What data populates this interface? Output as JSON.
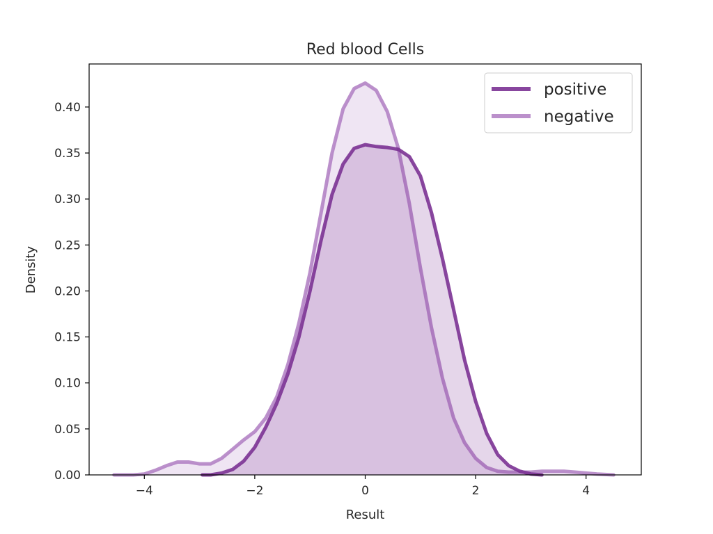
{
  "chart_data": {
    "type": "area",
    "title": "Red blood Cells",
    "xlabel": "Result",
    "ylabel": "Density",
    "xlim": [
      -5,
      5
    ],
    "ylim": [
      0,
      0.4468
    ],
    "xticks": [
      -4,
      -2,
      0,
      2,
      4
    ],
    "xtick_labels": [
      "−4",
      "−2",
      "0",
      "2",
      "4"
    ],
    "yticks": [
      0,
      0.05,
      0.1,
      0.15,
      0.2,
      0.25,
      0.3,
      0.35,
      0.4
    ],
    "ytick_labels": [
      "0.00",
      "0.05",
      "0.10",
      "0.15",
      "0.20",
      "0.25",
      "0.30",
      "0.35",
      "0.40"
    ],
    "legend_position": "top-right",
    "series": [
      {
        "name": "positive",
        "color": "#7b3294",
        "fill_opacity": 0.2,
        "line_opacity": 0.9,
        "points": [
          [
            -2.95,
            0.0
          ],
          [
            -2.8,
            0.0
          ],
          [
            -2.6,
            0.002
          ],
          [
            -2.4,
            0.006
          ],
          [
            -2.2,
            0.015
          ],
          [
            -2.0,
            0.03
          ],
          [
            -1.8,
            0.052
          ],
          [
            -1.6,
            0.078
          ],
          [
            -1.4,
            0.11
          ],
          [
            -1.2,
            0.15
          ],
          [
            -1.0,
            0.2
          ],
          [
            -0.8,
            0.255
          ],
          [
            -0.6,
            0.305
          ],
          [
            -0.4,
            0.338
          ],
          [
            -0.2,
            0.355
          ],
          [
            0.0,
            0.359
          ],
          [
            0.2,
            0.357
          ],
          [
            0.4,
            0.356
          ],
          [
            0.6,
            0.354
          ],
          [
            0.8,
            0.346
          ],
          [
            1.0,
            0.325
          ],
          [
            1.2,
            0.285
          ],
          [
            1.4,
            0.235
          ],
          [
            1.6,
            0.18
          ],
          [
            1.8,
            0.125
          ],
          [
            2.0,
            0.08
          ],
          [
            2.2,
            0.045
          ],
          [
            2.4,
            0.022
          ],
          [
            2.6,
            0.01
          ],
          [
            2.8,
            0.004
          ],
          [
            3.0,
            0.001
          ],
          [
            3.2,
            0.0
          ]
        ]
      },
      {
        "name": "negative",
        "color": "#af7dc2",
        "fill_opacity": 0.2,
        "line_opacity": 0.85,
        "points": [
          [
            -4.55,
            0.0
          ],
          [
            -4.2,
            0.0
          ],
          [
            -4.0,
            0.001
          ],
          [
            -3.8,
            0.005
          ],
          [
            -3.6,
            0.01
          ],
          [
            -3.4,
            0.014
          ],
          [
            -3.2,
            0.014
          ],
          [
            -3.0,
            0.012
          ],
          [
            -2.8,
            0.012
          ],
          [
            -2.6,
            0.018
          ],
          [
            -2.4,
            0.028
          ],
          [
            -2.2,
            0.038
          ],
          [
            -2.0,
            0.047
          ],
          [
            -1.8,
            0.062
          ],
          [
            -1.6,
            0.085
          ],
          [
            -1.4,
            0.12
          ],
          [
            -1.2,
            0.165
          ],
          [
            -1.0,
            0.22
          ],
          [
            -0.8,
            0.285
          ],
          [
            -0.6,
            0.35
          ],
          [
            -0.4,
            0.398
          ],
          [
            -0.2,
            0.42
          ],
          [
            0.0,
            0.426
          ],
          [
            0.2,
            0.418
          ],
          [
            0.4,
            0.395
          ],
          [
            0.6,
            0.355
          ],
          [
            0.8,
            0.295
          ],
          [
            1.0,
            0.225
          ],
          [
            1.2,
            0.16
          ],
          [
            1.4,
            0.105
          ],
          [
            1.6,
            0.062
          ],
          [
            1.8,
            0.035
          ],
          [
            2.0,
            0.018
          ],
          [
            2.2,
            0.008
          ],
          [
            2.4,
            0.004
          ],
          [
            2.6,
            0.003
          ],
          [
            2.8,
            0.003
          ],
          [
            3.0,
            0.003
          ],
          [
            3.2,
            0.004
          ],
          [
            3.4,
            0.004
          ],
          [
            3.6,
            0.004
          ],
          [
            3.8,
            0.003
          ],
          [
            4.0,
            0.002
          ],
          [
            4.2,
            0.001
          ],
          [
            4.5,
            0.0
          ]
        ]
      }
    ]
  }
}
